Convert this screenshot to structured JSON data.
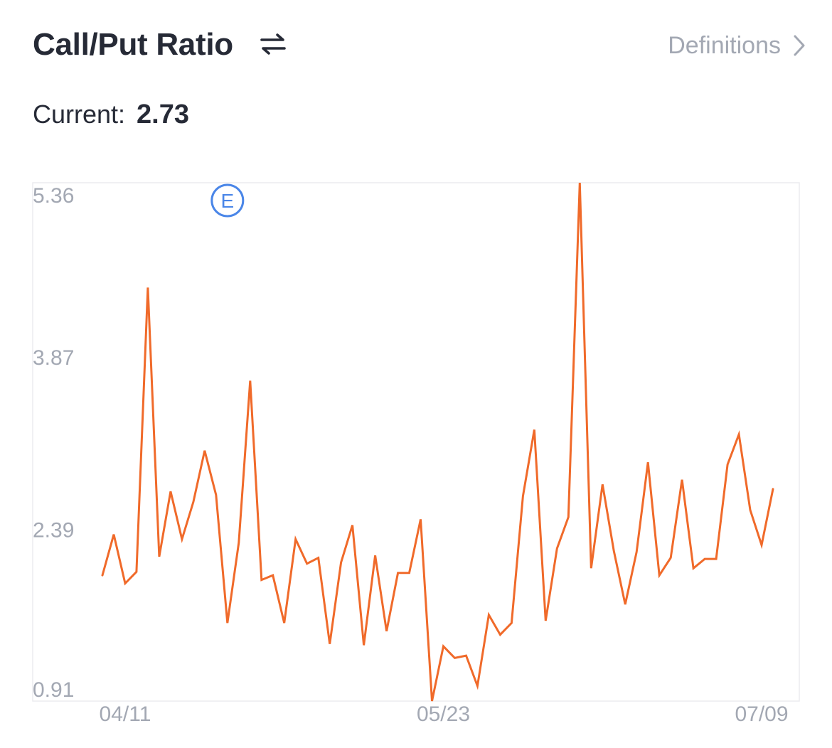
{
  "header": {
    "title": "Call/Put Ratio",
    "swap_icon": "swap-arrows-icon",
    "definitions_label": "Definitions",
    "chevron_icon": "chevron-right-icon"
  },
  "current": {
    "label": "Current:",
    "value": "2.73"
  },
  "colors": {
    "line": "#f06a2a",
    "earnings_marker": "#4a86e8",
    "axis_text": "#a3a8b3",
    "frame": "#ececef"
  },
  "chart_data": {
    "type": "line",
    "ylim": [
      0.91,
      5.36
    ],
    "y_ticks": [
      "5.36",
      "3.87",
      "2.39",
      "0.91"
    ],
    "y_tick_values": [
      5.36,
      3.87,
      2.39,
      0.91
    ],
    "x_tick_labels": [
      "04/11",
      "05/23",
      "07/09"
    ],
    "x_tick_indices": [
      2,
      30,
      58
    ],
    "earnings_marker": {
      "label": "E",
      "index": 11
    },
    "series": [
      {
        "values": [
          1.99,
          2.34,
          1.92,
          2.02,
          4.46,
          2.15,
          2.71,
          2.3,
          2.62,
          3.06,
          2.68,
          1.58,
          2.27,
          3.66,
          1.95,
          1.99,
          1.58,
          2.3,
          2.09,
          2.14,
          1.4,
          2.1,
          2.42,
          1.39,
          2.16,
          1.51,
          2.01,
          2.01,
          2.47,
          0.91,
          1.38,
          1.28,
          1.3,
          1.04,
          1.65,
          1.48,
          1.58,
          2.67,
          3.24,
          1.6,
          2.22,
          2.49,
          5.36,
          2.05,
          2.77,
          2.2,
          1.74,
          2.19,
          2.96,
          1.99,
          2.14,
          2.81,
          2.05,
          2.13,
          2.13,
          2.94,
          3.2,
          2.55,
          2.25,
          2.73
        ]
      }
    ]
  }
}
